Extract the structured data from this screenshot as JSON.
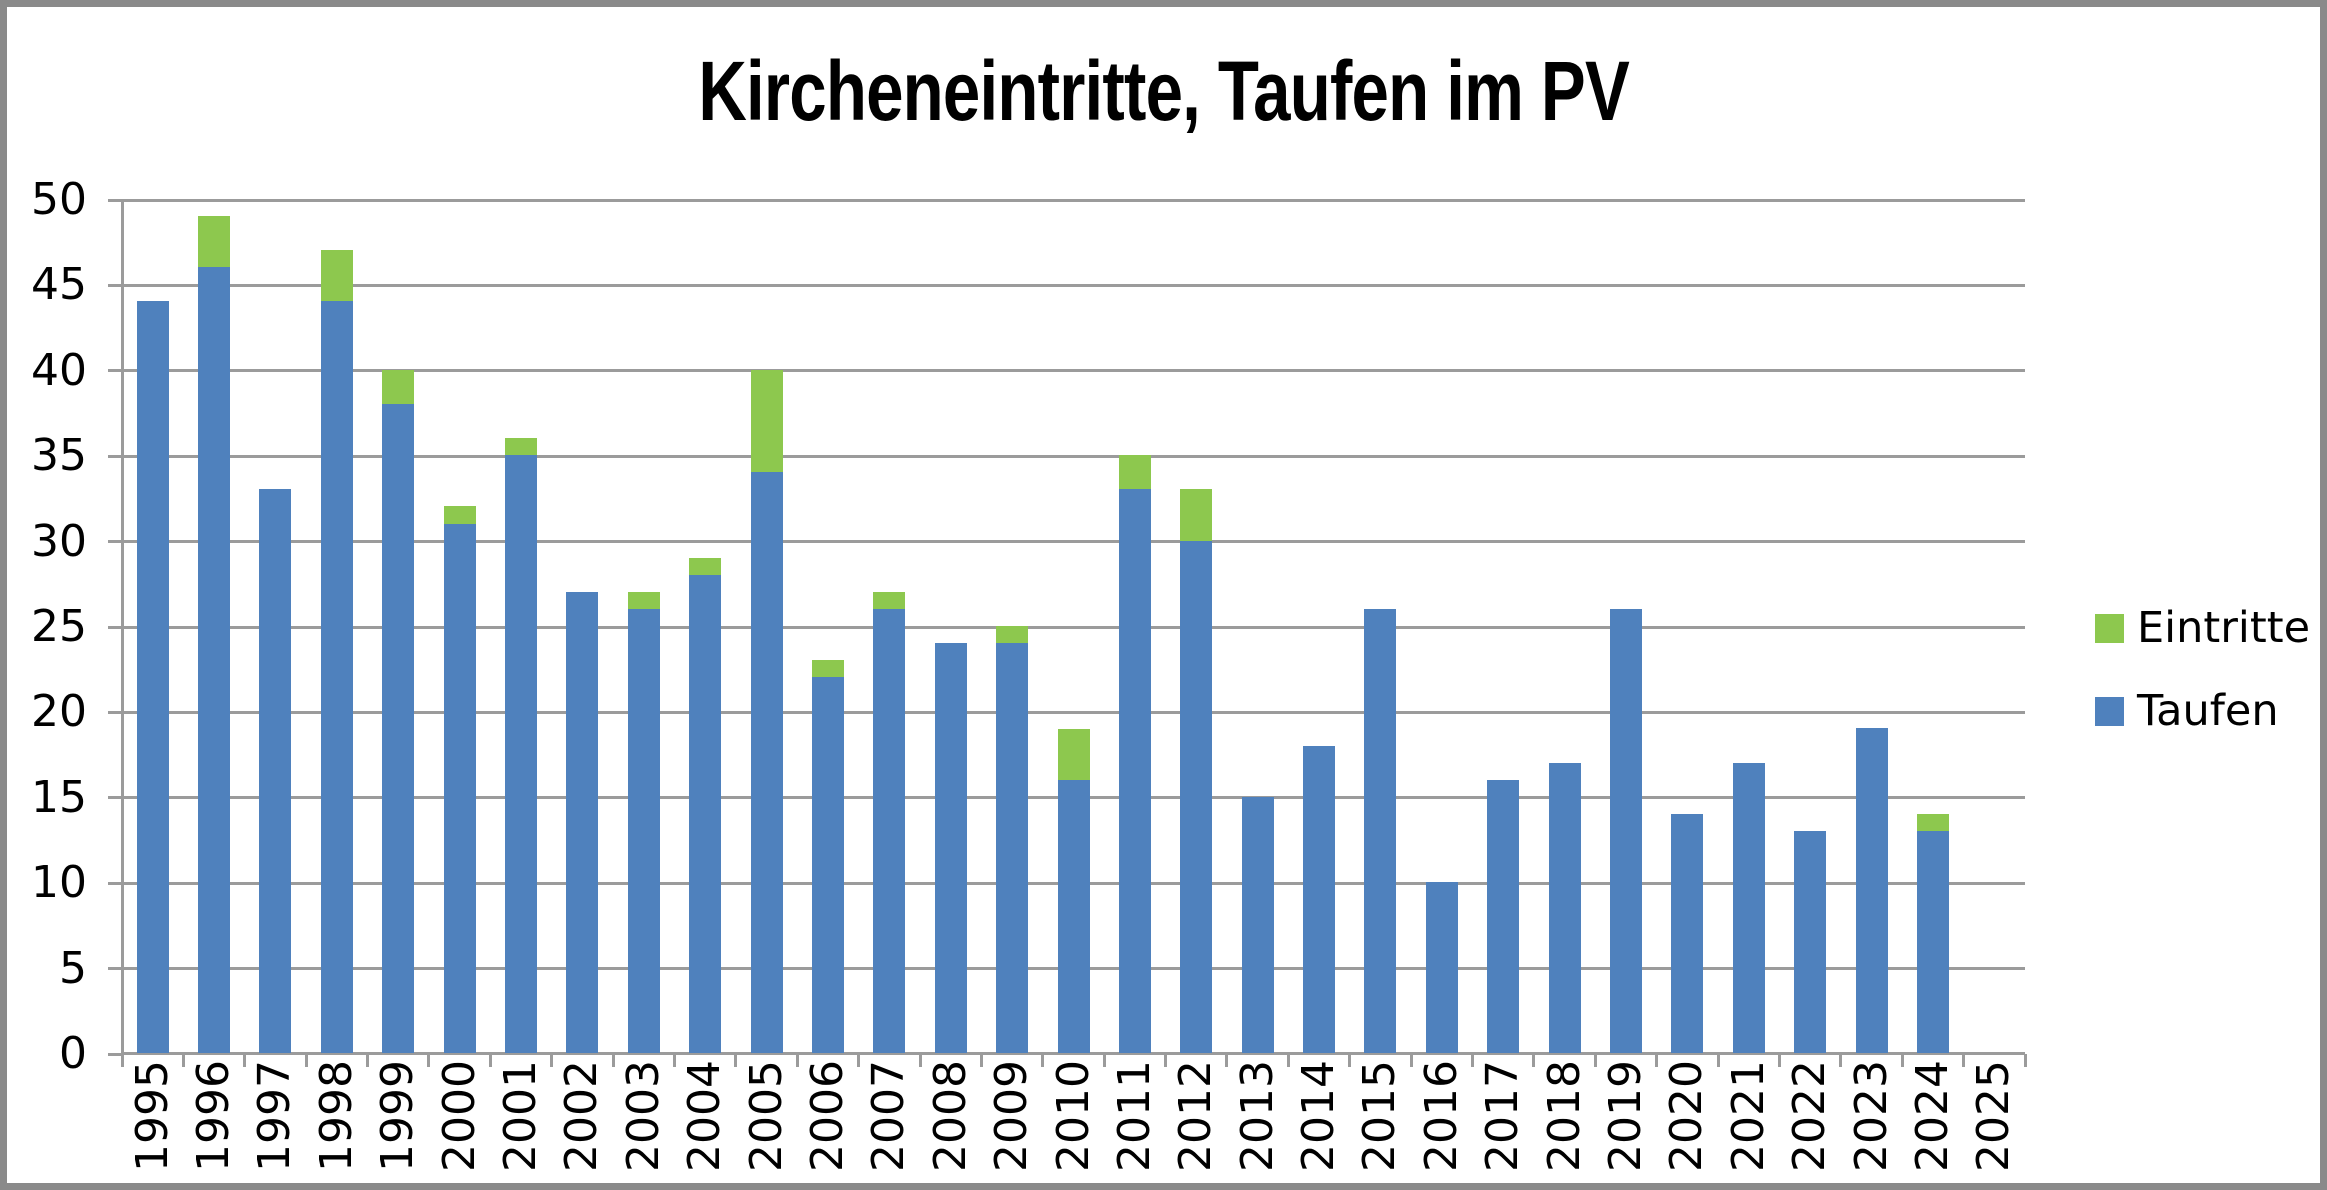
{
  "window": {
    "background": "#FFFFFF",
    "frame_border_color": "#8A8A8A"
  },
  "chart_data": {
    "type": "bar",
    "stacked": true,
    "title": "Kircheneintritte, Taufen im PV",
    "categories": [
      "1995",
      "1996",
      "1997",
      "1998",
      "1999",
      "2000",
      "2001",
      "2002",
      "2003",
      "2004",
      "2005",
      "2006",
      "2007",
      "2008",
      "2009",
      "2010",
      "2011",
      "2012",
      "2013",
      "2014",
      "2015",
      "2016",
      "2017",
      "2018",
      "2019",
      "2020",
      "2021",
      "2022",
      "2023",
      "2024",
      "2025"
    ],
    "series": [
      {
        "name": "Taufen",
        "color": "#4F81BD",
        "values": [
          44,
          46,
          33,
          44,
          38,
          31,
          35,
          27,
          26,
          28,
          34,
          22,
          26,
          24,
          24,
          16,
          33,
          30,
          15,
          18,
          26,
          10,
          16,
          17,
          26,
          14,
          17,
          13,
          19,
          13,
          0
        ]
      },
      {
        "name": "Eintritte",
        "color": "#8DC84E",
        "values": [
          0,
          3,
          0,
          3,
          2,
          1,
          1,
          0,
          1,
          1,
          6,
          1,
          1,
          0,
          1,
          3,
          2,
          3,
          0,
          0,
          0,
          0,
          0,
          0,
          0,
          0,
          0,
          0,
          0,
          1,
          0
        ]
      }
    ],
    "stack_totals": [
      44,
      49,
      33,
      47,
      40,
      32,
      36,
      27,
      27,
      29,
      40,
      23,
      27,
      24,
      25,
      19,
      35,
      33,
      15,
      18,
      26,
      10,
      16,
      17,
      26,
      14,
      17,
      13,
      19,
      14,
      0
    ],
    "xlabel": "",
    "ylabel": "",
    "ylim": [
      0,
      50
    ],
    "ytick_step": 5,
    "ytick_labels": [
      "0",
      "5",
      "10",
      "15",
      "20",
      "25",
      "30",
      "35",
      "40",
      "45",
      "50"
    ],
    "grid": true,
    "gridline_color": "#9B9B9B",
    "axis_color": "#9B9B9B",
    "text_color": "#000000",
    "legend_position": "right",
    "legend": [
      {
        "label": "Eintritte",
        "color": "#8DC84E"
      },
      {
        "label": "Taufen",
        "color": "#4F81BD"
      }
    ]
  }
}
